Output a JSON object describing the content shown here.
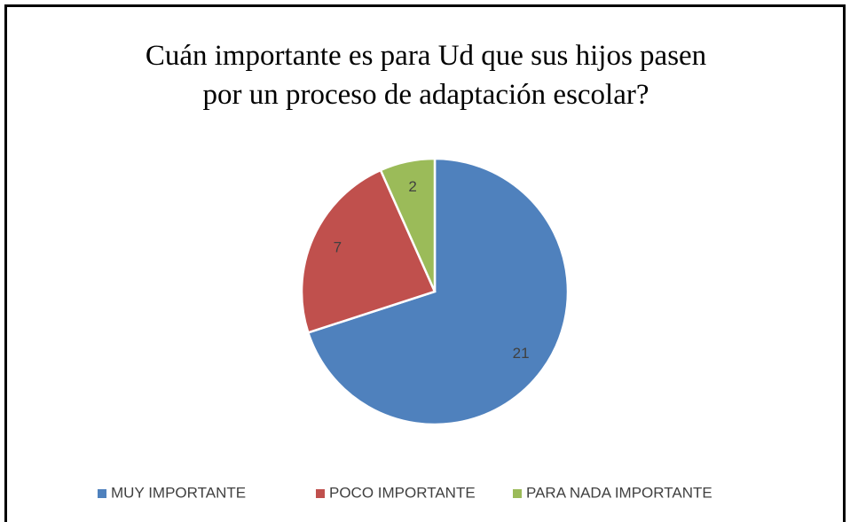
{
  "chart_data": {
    "type": "pie",
    "title": [
      "Cuán importante es para Ud que sus hijos pasen",
      "por un proceso de adaptación escolar?"
    ],
    "categories": [
      "MUY IMPORTANTE",
      "POCO IMPORTANTE",
      "PARA NADA IMPORTANTE"
    ],
    "values": [
      21,
      7,
      2
    ],
    "colors": [
      "#4f81bd",
      "#c0504d",
      "#9bbb59"
    ],
    "legend": "bottom"
  }
}
